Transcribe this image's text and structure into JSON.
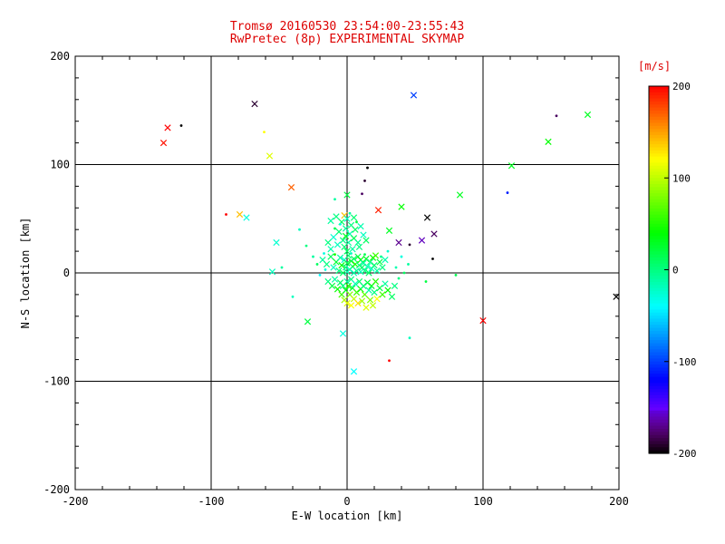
{
  "colors": {
    "title": "#dd0000",
    "axis": "#000000",
    "background": "#ffffff"
  },
  "chart_data": {
    "type": "scatter",
    "title_line1": "Tromsø 20160530 23:54:00-23:55:43",
    "title_line2": "RwPretec (8p) EXPERIMENTAL SKYMAP",
    "xlabel": "E-W location [km]",
    "ylabel": "N-S location [km]",
    "xlim": [
      -200,
      200
    ],
    "ylim": [
      -200,
      200
    ],
    "xticks": [
      -200,
      -100,
      0,
      100,
      200
    ],
    "yticks": [
      -200,
      -100,
      0,
      100,
      200
    ],
    "grid": "solid black lines at -100, 0, 100 on both axes",
    "colorbar_label": "[m/s]",
    "colorbar_range": [
      -200,
      200
    ],
    "colorbar_ticks": [
      200,
      100,
      0,
      -100,
      -200
    ],
    "marker_note": "points are x crosses and small dots colored by line-of-sight velocity (m/s), rainbow colormap: -200 black/violet, -100 blue, 0 green, 100 yellow, 200 red",
    "points": [
      [
        -132,
        134,
        200
      ],
      [
        -135,
        120,
        195
      ],
      [
        -122,
        136,
        -200,
        "."
      ],
      [
        -68,
        156,
        -190
      ],
      [
        49,
        164,
        -100
      ],
      [
        154,
        145,
        -180,
        "."
      ],
      [
        177,
        146,
        30
      ],
      [
        148,
        121,
        40
      ],
      [
        121,
        99,
        30
      ],
      [
        -61,
        130,
        120,
        "."
      ],
      [
        -57,
        108,
        110
      ],
      [
        -41,
        79,
        170
      ],
      [
        -89,
        54,
        200,
        "."
      ],
      [
        -79,
        54,
        140
      ],
      [
        -74,
        51,
        -30
      ],
      [
        59,
        51,
        -200
      ],
      [
        64,
        36,
        -180
      ],
      [
        83,
        72,
        30
      ],
      [
        118,
        74,
        -110,
        "."
      ],
      [
        100,
        -44,
        200
      ],
      [
        198,
        -22,
        -200
      ],
      [
        31,
        -81,
        200,
        "."
      ],
      [
        5,
        -91,
        -40
      ],
      [
        -3,
        -56,
        -30
      ],
      [
        -29,
        -45,
        20
      ],
      [
        -40,
        -22,
        -20,
        "."
      ],
      [
        -55,
        1,
        -20
      ],
      [
        15,
        97,
        -200,
        "."
      ],
      [
        13,
        85,
        -190,
        "."
      ],
      [
        11,
        73,
        -180,
        "."
      ],
      [
        40,
        61,
        40
      ],
      [
        31,
        39,
        30
      ],
      [
        46,
        26,
        -190,
        "."
      ],
      [
        38,
        28,
        -170
      ],
      [
        55,
        30,
        -160
      ],
      [
        63,
        13,
        -200,
        "."
      ],
      [
        23,
        58,
        190
      ],
      [
        -2,
        53,
        140
      ],
      [
        0,
        72,
        20
      ],
      [
        -9,
        68,
        -10,
        "."
      ],
      [
        46,
        -60,
        -20,
        "."
      ],
      [
        80,
        -2,
        15,
        "."
      ],
      [
        -52,
        28,
        -25
      ],
      [
        -48,
        5,
        -10,
        "."
      ],
      [
        58,
        -8,
        20,
        "."
      ],
      [
        -12,
        48,
        -10
      ],
      [
        -8,
        52,
        0
      ],
      [
        -4,
        47,
        10
      ],
      [
        0,
        50,
        -20
      ],
      [
        3,
        44,
        0
      ],
      [
        -1,
        41,
        -10
      ],
      [
        -6,
        38,
        5
      ],
      [
        2,
        36,
        -15
      ],
      [
        6,
        40,
        10
      ],
      [
        -10,
        33,
        -25
      ],
      [
        -3,
        30,
        0
      ],
      [
        1,
        28,
        -10
      ],
      [
        5,
        32,
        15
      ],
      [
        8,
        28,
        -5
      ],
      [
        -7,
        26,
        -20
      ],
      [
        -2,
        24,
        5
      ],
      [
        4,
        22,
        -10
      ],
      [
        9,
        24,
        0
      ],
      [
        -12,
        22,
        -15
      ],
      [
        0,
        20,
        10
      ],
      [
        -5,
        45,
        -30,
        "."
      ],
      [
        7,
        47,
        20,
        "."
      ],
      [
        2,
        55,
        -10,
        "."
      ],
      [
        -9,
        41,
        15,
        "."
      ],
      [
        12,
        35,
        -20
      ],
      [
        14,
        30,
        10
      ],
      [
        -14,
        28,
        0
      ],
      [
        -1,
        34,
        30
      ],
      [
        10,
        43,
        -15
      ],
      [
        5,
        51,
        5
      ],
      [
        -18,
        12,
        -10
      ],
      [
        -15,
        8,
        0
      ],
      [
        -12,
        15,
        10
      ],
      [
        -10,
        5,
        -20
      ],
      [
        -8,
        10,
        25
      ],
      [
        -6,
        2,
        0
      ],
      [
        -5,
        14,
        -10
      ],
      [
        -4,
        7,
        40
      ],
      [
        -3,
        0,
        10
      ],
      [
        -2,
        12,
        -25
      ],
      [
        -1,
        5,
        0
      ],
      [
        0,
        9,
        15
      ],
      [
        0,
        1,
        -10
      ],
      [
        1,
        16,
        5
      ],
      [
        2,
        3,
        -20
      ],
      [
        3,
        11,
        30
      ],
      [
        4,
        6,
        0
      ],
      [
        5,
        0,
        -15
      ],
      [
        5,
        13,
        10
      ],
      [
        6,
        8,
        50
      ],
      [
        7,
        2,
        -5
      ],
      [
        8,
        15,
        20
      ],
      [
        9,
        7,
        0
      ],
      [
        10,
        1,
        -20
      ],
      [
        10,
        12,
        35
      ],
      [
        11,
        5,
        10
      ],
      [
        12,
        9,
        -10
      ],
      [
        13,
        2,
        0
      ],
      [
        14,
        13,
        25
      ],
      [
        15,
        6,
        -15
      ],
      [
        16,
        0,
        10
      ],
      [
        17,
        10,
        0
      ],
      [
        18,
        4,
        -20
      ],
      [
        19,
        14,
        40
      ],
      [
        20,
        7,
        5
      ],
      [
        22,
        2,
        -10
      ],
      [
        24,
        10,
        20
      ],
      [
        26,
        5,
        0
      ],
      [
        28,
        12,
        -15
      ],
      [
        21,
        16,
        60
      ],
      [
        -16,
        3,
        -30,
        "."
      ],
      [
        -9,
        17,
        45,
        "."
      ],
      [
        3,
        18,
        -20,
        "."
      ],
      [
        13,
        17,
        15,
        "."
      ],
      [
        25,
        15,
        -5,
        "."
      ],
      [
        -14,
        -8,
        0
      ],
      [
        -11,
        -12,
        20
      ],
      [
        -9,
        -6,
        -10
      ],
      [
        -7,
        -15,
        40
      ],
      [
        -5,
        -9,
        10
      ],
      [
        -4,
        -20,
        60
      ],
      [
        -3,
        -12,
        0
      ],
      [
        -2,
        -25,
        90
      ],
      [
        -1,
        -16,
        30
      ],
      [
        0,
        -8,
        -10
      ],
      [
        0,
        -28,
        110
      ],
      [
        1,
        -12,
        50
      ],
      [
        2,
        -20,
        80
      ],
      [
        3,
        -6,
        0
      ],
      [
        3,
        -30,
        120
      ],
      [
        4,
        -14,
        20
      ],
      [
        5,
        -24,
        100
      ],
      [
        6,
        -10,
        -20
      ],
      [
        7,
        -18,
        60
      ],
      [
        8,
        -28,
        130
      ],
      [
        9,
        -8,
        10
      ],
      [
        10,
        -15,
        40
      ],
      [
        11,
        -26,
        90
      ],
      [
        12,
        -12,
        0
      ],
      [
        13,
        -20,
        70
      ],
      [
        14,
        -32,
        110
      ],
      [
        15,
        -9,
        20
      ],
      [
        16,
        -16,
        -10
      ],
      [
        17,
        -25,
        80
      ],
      [
        18,
        -12,
        30
      ],
      [
        19,
        -30,
        100
      ],
      [
        20,
        -18,
        0
      ],
      [
        21,
        -8,
        50
      ],
      [
        22,
        -24,
        120
      ],
      [
        24,
        -14,
        20
      ],
      [
        26,
        -20,
        60
      ],
      [
        28,
        -10,
        -10
      ],
      [
        30,
        -16,
        40
      ],
      [
        33,
        -22,
        10
      ],
      [
        35,
        -12,
        0
      ],
      [
        -20,
        -2,
        -40,
        "."
      ],
      [
        -17,
        18,
        -30,
        "."
      ],
      [
        30,
        20,
        -25,
        "."
      ],
      [
        36,
        5,
        -15,
        "."
      ],
      [
        38,
        -5,
        0,
        "."
      ],
      [
        -22,
        8,
        10,
        "."
      ],
      [
        -25,
        15,
        -10,
        "."
      ],
      [
        -30,
        25,
        0,
        "."
      ],
      [
        -35,
        40,
        -20,
        "."
      ],
      [
        40,
        15,
        -30,
        "."
      ],
      [
        42,
        0,
        10,
        "."
      ],
      [
        45,
        8,
        -10,
        "."
      ]
    ]
  }
}
